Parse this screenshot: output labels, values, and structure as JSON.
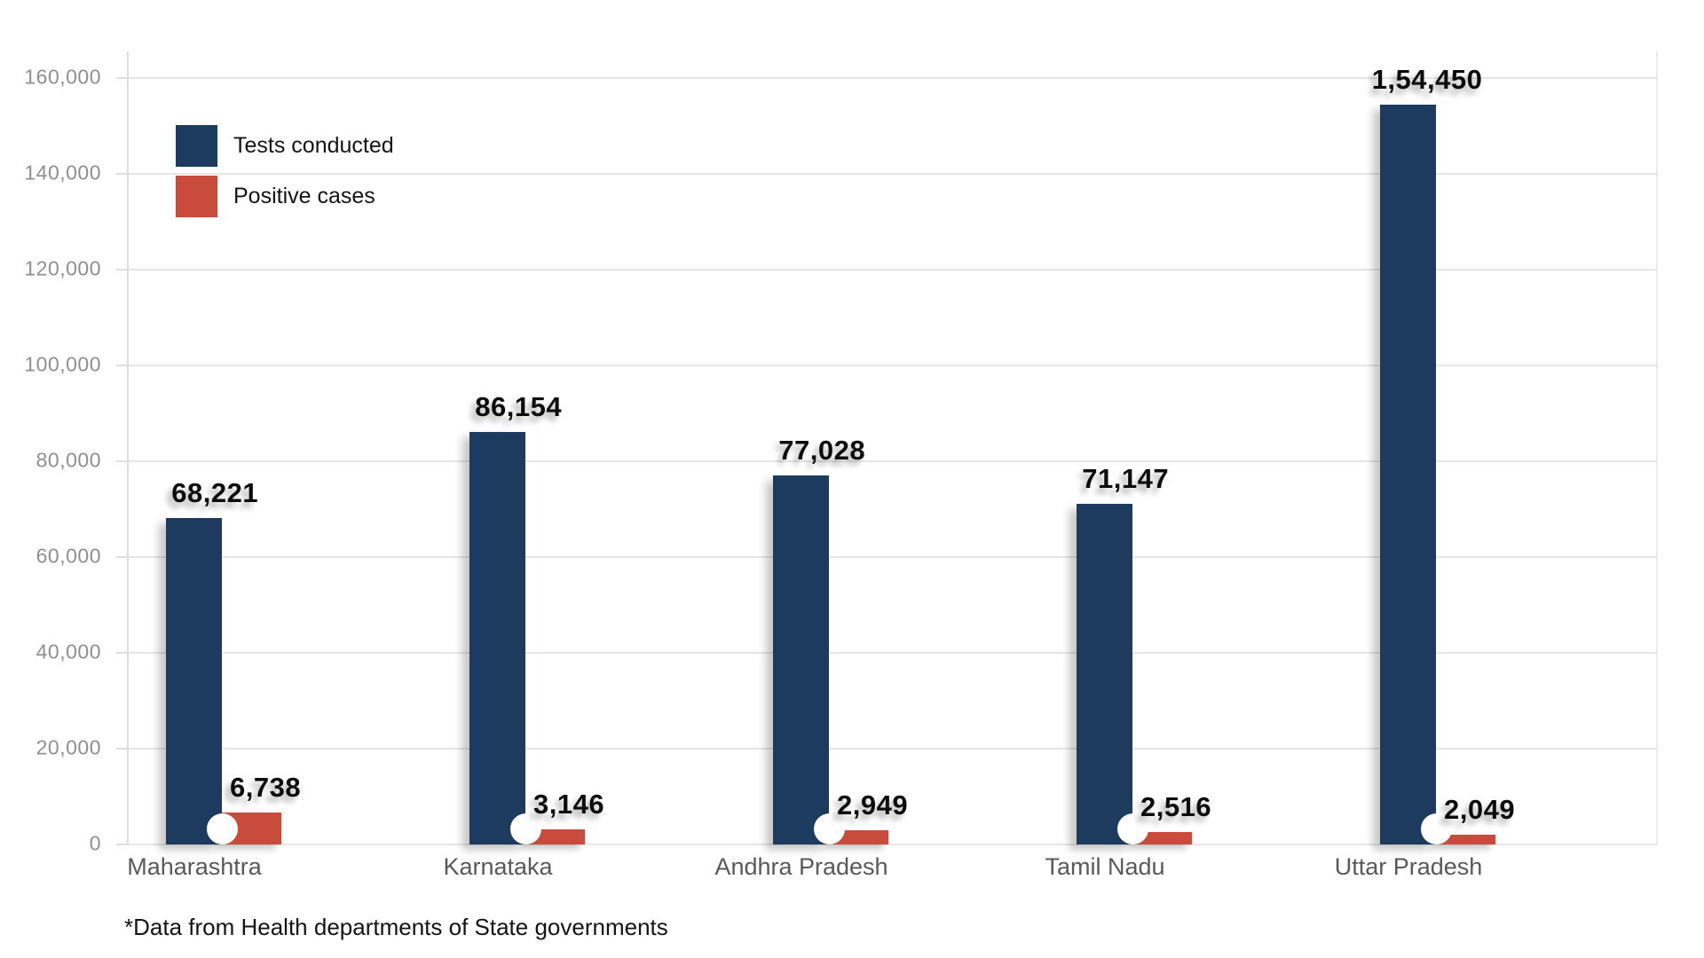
{
  "chart_data": {
    "type": "bar",
    "title": "",
    "categories": [
      "Maharashtra",
      "Karnataka",
      "Andhra Pradesh",
      "Tamil Nadu",
      "Uttar Pradesh"
    ],
    "series": [
      {
        "name": "Tests conducted",
        "color": "#1d3a5f",
        "values": [
          68221,
          86154,
          77028,
          71147,
          154450
        ],
        "labels": [
          "68,221",
          "86,154",
          "77,028",
          "71,147",
          "1,54,450"
        ]
      },
      {
        "name": "Positive cases",
        "color": "#c84b3b",
        "values": [
          6738,
          3146,
          2949,
          2516,
          2049
        ],
        "labels": [
          "6,738",
          "3,146",
          "2,949",
          "2,516",
          "2,049"
        ]
      }
    ],
    "y_axis": {
      "min": 0,
      "max": 160000,
      "tick_step": 20000,
      "tick_labels": [
        "0",
        "20,000",
        "40,000",
        "60,000",
        "80,000",
        "100,000",
        "120,000",
        "140,000",
        "160,000"
      ]
    },
    "grid": true,
    "legend_position": "top-left",
    "footnote": "*Data from Health departments of State governments"
  }
}
